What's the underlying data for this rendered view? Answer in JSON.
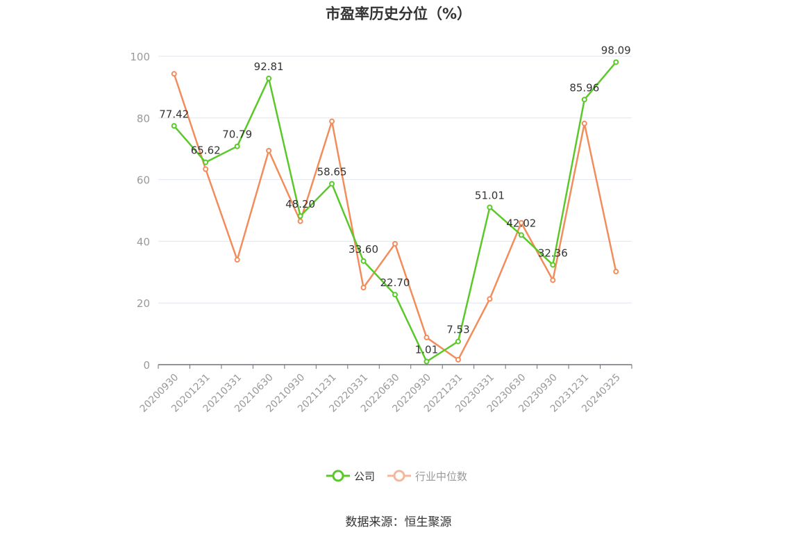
{
  "chart_data": {
    "type": "line",
    "title": "市盈率历史分位（%）",
    "categories": [
      "20200930",
      "20201231",
      "20210331",
      "20210630",
      "20210930",
      "20211231",
      "20220331",
      "20220630",
      "20220930",
      "20221231",
      "20230331",
      "20230630",
      "20230930",
      "20231231",
      "20240325"
    ],
    "series": [
      {
        "name": "公司",
        "color": "#5ac828",
        "values": [
          77.42,
          65.62,
          70.79,
          92.81,
          48.2,
          58.65,
          33.6,
          22.7,
          1.01,
          7.53,
          51.01,
          42.02,
          32.36,
          85.96,
          98.09
        ],
        "labels": [
          "77.42",
          "65.62",
          "70.79",
          "92.81",
          "48.20",
          "58.65",
          "33.60",
          "22.70",
          "1.01",
          "7.53",
          "51.01",
          "42.02",
          "32.36",
          "85.96",
          "98.09"
        ]
      },
      {
        "name": "行业中位数",
        "color": "#f28c5b",
        "values": [
          94.3,
          63.4,
          34.0,
          69.4,
          46.5,
          78.9,
          25.0,
          39.2,
          8.8,
          1.6,
          21.3,
          46.0,
          27.4,
          78.2,
          30.2
        ]
      }
    ],
    "yticks": [
      0,
      20,
      40,
      60,
      80,
      100
    ],
    "ylim": [
      0,
      100
    ],
    "xlabel": "",
    "ylabel": "",
    "grid": true,
    "legend_position": "bottom"
  },
  "colors": {
    "axis": "#6e7079",
    "grid": "#e0e6f1",
    "tick_label": "#999999",
    "text": "#333333",
    "legend_inactive": "#f5b69a"
  },
  "source": "数据来源：恒生聚源"
}
